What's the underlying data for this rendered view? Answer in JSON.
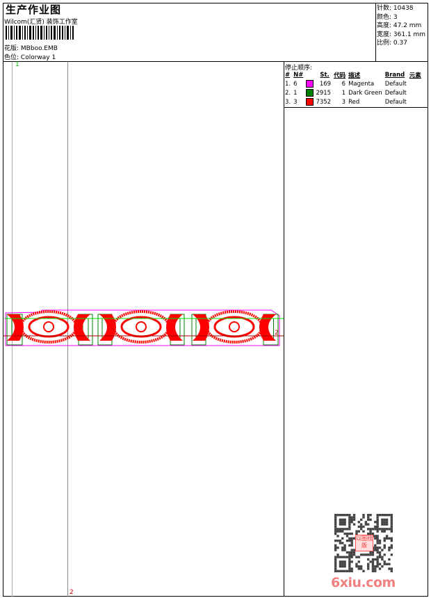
{
  "header": {
    "title": "生产作业图",
    "company": "Wilcom(汇贤) 装饰工作室",
    "design_label": "花版:",
    "design_value": "MBboo.EMB",
    "colorway_label": "色位:",
    "colorway_value": "Colorway 1"
  },
  "stats": {
    "stitches": "针数: 10438",
    "colors": "颜色: 3",
    "height": "高度: 47.2 mm",
    "width": "宽度: 361.1 mm",
    "scale": "比例: 0.37"
  },
  "stop_sequence": {
    "title": "停止顺序:",
    "columns": [
      "#",
      "N#",
      "St.",
      "代码",
      "描述",
      "Brand",
      "元素"
    ],
    "rows": [
      {
        "idx": "1.",
        "n": "6",
        "color": "#ff00ff",
        "st": "169",
        "code": "6",
        "desc": "Magenta",
        "brand": "Default"
      },
      {
        "idx": "2.",
        "n": "1",
        "color": "#008000",
        "st": "2915",
        "code": "1",
        "desc": "Dark Green",
        "brand": "Default"
      },
      {
        "idx": "3.",
        "n": "3",
        "color": "#ff0000",
        "st": "7352",
        "code": "3",
        "desc": "Red",
        "brand": "Default"
      }
    ]
  },
  "canvas": {
    "marker_1": "1",
    "marker_2_bottom": "2",
    "marker_2_right": "2"
  },
  "watermark": "6xiu.com",
  "qr_badge": "以图找版"
}
